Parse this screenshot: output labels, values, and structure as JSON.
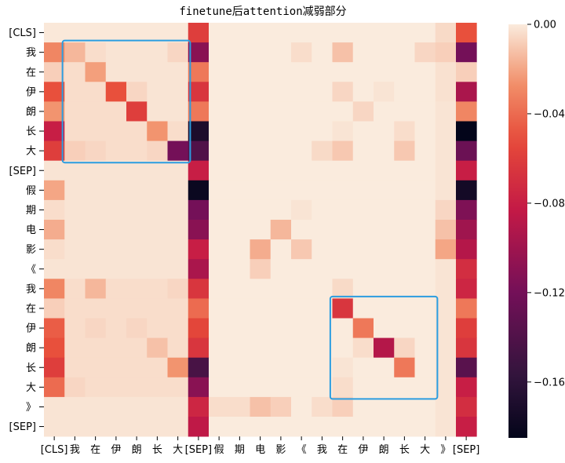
{
  "chart_data": {
    "type": "heatmap",
    "title": "finetune后attention减弱部分",
    "xlabel": "",
    "ylabel": "",
    "row_labels": [
      "[CLS]",
      "我",
      "在",
      "伊",
      "朗",
      "长",
      "大",
      "[SEP]",
      "假",
      "期",
      "电",
      "影",
      "《",
      "我",
      "在",
      "伊",
      "朗",
      "长",
      "大",
      "》",
      "[SEP]"
    ],
    "col_labels": [
      "[CLS]",
      "我",
      "在",
      "伊",
      "朗",
      "长",
      "大",
      "[SEP]",
      "假",
      "期",
      "电",
      "影",
      "《",
      "我",
      "在",
      "伊",
      "朗",
      "长",
      "大",
      "》",
      "[SEP]"
    ],
    "colorbar": {
      "vmin": -0.185,
      "vmax": 0.0,
      "ticks": [
        0.0,
        -0.04,
        -0.08,
        -0.12,
        -0.16
      ],
      "tick_labels": [
        "0.00",
        "−0.04",
        "−0.08",
        "−0.12",
        "−0.16"
      ],
      "colormap": "rocket"
    },
    "values": [
      [
        -0.001,
        -0.001,
        -0.001,
        -0.001,
        -0.001,
        -0.001,
        -0.001,
        -0.06,
        0,
        0,
        0,
        0,
        0,
        0,
        0,
        0,
        0,
        0,
        0,
        -0.005,
        -0.05
      ],
      [
        -0.03,
        -0.015,
        -0.004,
        -0.002,
        -0.002,
        -0.002,
        -0.006,
        -0.11,
        0,
        0,
        0,
        0,
        -0.004,
        0,
        -0.012,
        0,
        0,
        0,
        -0.006,
        -0.008,
        -0.12
      ],
      [
        -0.008,
        -0.004,
        -0.022,
        -0.002,
        -0.002,
        -0.002,
        -0.002,
        -0.035,
        0,
        0,
        0,
        0,
        0,
        0,
        0,
        0,
        0,
        0,
        0,
        -0.003,
        -0.008
      ],
      [
        -0.05,
        -0.004,
        -0.004,
        -0.05,
        -0.006,
        -0.002,
        -0.002,
        -0.065,
        0,
        0,
        0,
        0,
        0,
        0,
        -0.006,
        0,
        -0.002,
        0,
        0,
        -0.003,
        -0.095
      ],
      [
        -0.025,
        -0.004,
        -0.004,
        -0.004,
        -0.06,
        -0.002,
        -0.002,
        -0.035,
        0,
        0,
        0,
        0,
        0,
        0,
        0,
        -0.006,
        0,
        0,
        0,
        -0.002,
        -0.03
      ],
      [
        -0.08,
        -0.004,
        -0.004,
        -0.004,
        -0.004,
        -0.025,
        -0.004,
        -0.17,
        0,
        0,
        0,
        0,
        0,
        0,
        -0.002,
        0,
        0,
        -0.004,
        0,
        -0.002,
        -0.185
      ],
      [
        -0.06,
        -0.008,
        -0.006,
        -0.004,
        -0.004,
        -0.006,
        -0.12,
        -0.14,
        0,
        0,
        0,
        0,
        0,
        -0.005,
        -0.01,
        0,
        0,
        -0.01,
        0,
        -0.002,
        -0.125
      ],
      [
        -0.002,
        -0.002,
        -0.002,
        -0.002,
        -0.002,
        -0.002,
        -0.002,
        -0.08,
        0,
        0,
        0,
        0,
        0,
        0,
        0,
        0,
        0,
        0,
        0,
        -0.002,
        -0.08
      ],
      [
        -0.02,
        -0.002,
        -0.002,
        -0.002,
        -0.002,
        -0.002,
        -0.002,
        -0.18,
        0,
        0,
        0,
        0,
        0,
        0,
        0,
        0,
        0,
        0,
        0,
        -0.002,
        -0.175
      ],
      [
        -0.004,
        -0.002,
        -0.002,
        -0.002,
        -0.002,
        -0.002,
        -0.002,
        -0.12,
        0,
        0,
        0,
        0,
        -0.002,
        0,
        0,
        0,
        0,
        0,
        0,
        -0.006,
        -0.115
      ],
      [
        -0.018,
        -0.002,
        -0.002,
        -0.002,
        -0.002,
        -0.002,
        -0.002,
        -0.11,
        0,
        0,
        0,
        -0.015,
        0,
        0,
        0,
        0,
        0,
        0,
        0,
        -0.012,
        -0.1
      ],
      [
        -0.004,
        -0.002,
        -0.002,
        -0.002,
        -0.002,
        -0.002,
        -0.002,
        -0.08,
        0,
        0,
        -0.018,
        0,
        -0.01,
        0,
        0,
        0,
        0,
        0,
        0,
        -0.02,
        -0.09
      ],
      [
        -0.002,
        -0.002,
        -0.002,
        -0.002,
        -0.002,
        -0.002,
        -0.002,
        -0.095,
        0,
        0,
        -0.008,
        0,
        0,
        0,
        0,
        0,
        0,
        0,
        0,
        -0.002,
        -0.07
      ],
      [
        -0.03,
        -0.004,
        -0.015,
        -0.004,
        -0.004,
        -0.004,
        -0.006,
        -0.065,
        0,
        0,
        0,
        0,
        0,
        0,
        -0.005,
        0,
        0,
        0,
        0,
        -0.002,
        -0.075
      ],
      [
        -0.008,
        -0.004,
        -0.004,
        -0.004,
        -0.004,
        -0.004,
        -0.004,
        -0.04,
        0,
        0,
        0,
        0,
        0,
        0,
        -0.065,
        0,
        0,
        0,
        0,
        -0.002,
        -0.035
      ],
      [
        -0.045,
        -0.004,
        -0.006,
        -0.004,
        -0.006,
        -0.004,
        -0.004,
        -0.055,
        0,
        0,
        0,
        0,
        0,
        0,
        0,
        -0.035,
        0,
        0,
        0,
        -0.002,
        -0.06
      ],
      [
        -0.05,
        -0.004,
        -0.004,
        -0.004,
        -0.004,
        -0.012,
        -0.004,
        -0.065,
        0,
        0,
        0,
        0,
        0,
        0,
        0,
        -0.004,
        -0.09,
        -0.006,
        0,
        -0.002,
        -0.065
      ],
      [
        -0.06,
        -0.004,
        -0.004,
        -0.004,
        -0.004,
        -0.004,
        -0.025,
        -0.145,
        0,
        0,
        0,
        0,
        0,
        0,
        -0.002,
        0,
        0,
        -0.035,
        0,
        -0.002,
        -0.135
      ],
      [
        -0.04,
        -0.006,
        -0.004,
        -0.004,
        -0.004,
        -0.004,
        -0.004,
        -0.11,
        0,
        0,
        0,
        0,
        0,
        0,
        -0.004,
        0,
        0,
        0,
        0,
        -0.002,
        -0.08
      ],
      [
        -0.002,
        -0.002,
        -0.002,
        -0.002,
        -0.002,
        -0.002,
        -0.002,
        -0.075,
        -0.004,
        -0.004,
        -0.012,
        -0.008,
        0,
        -0.004,
        -0.008,
        0,
        0,
        0,
        0,
        -0.002,
        -0.07
      ],
      [
        -0.002,
        -0.002,
        -0.002,
        -0.002,
        -0.002,
        -0.002,
        -0.002,
        -0.085,
        0,
        0,
        0,
        0,
        0,
        0,
        0,
        0,
        0,
        0,
        0,
        -0.002,
        -0.08
      ]
    ],
    "highlight_boxes": [
      {
        "rows": [
          1,
          6
        ],
        "cols": [
          1,
          6
        ],
        "color": "#2b9de0"
      },
      {
        "rows": [
          14,
          18
        ],
        "cols": [
          14,
          18
        ],
        "color": "#2b9de0"
      }
    ]
  }
}
